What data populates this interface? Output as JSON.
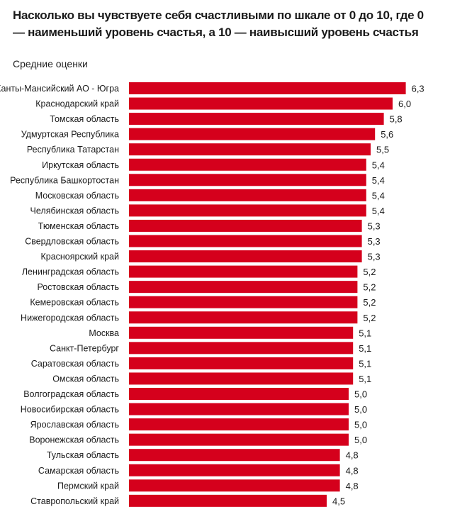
{
  "chart_data": {
    "type": "bar",
    "orientation": "horizontal",
    "title": "Насколько вы чувствуете себя счастливыми по шкале от 0 до 10, где 0 — наименьший уровень счастья, а 10 — наивысший уровень счастья",
    "subtitle": "Средние оценки",
    "xlabel": "",
    "ylabel": "",
    "xlim": [
      0,
      6.3
    ],
    "grid": false,
    "bar_color": "#d5001c",
    "categories": [
      "Ханты-Мансийский АО - Югра",
      "Краснодарский край",
      "Томская область",
      "Удмуртская Республика",
      "Республика Татарстан",
      "Иркутская область",
      "Республика Башкортостан",
      "Московская область",
      "Челябинская область",
      "Тюменская область",
      "Свердловская область",
      "Красноярский край",
      "Ленинградская область",
      "Ростовская область",
      "Кемеровская область",
      "Нижегородская область",
      "Москва",
      "Санкт-Петербург",
      "Саратовская область",
      "Омская область",
      "Волгоградская область",
      "Новосибирская область",
      "Ярославская область",
      "Воронежская область",
      "Тульская область",
      "Самарская область",
      "Пермский край",
      "Ставропольский край"
    ],
    "values": [
      6.3,
      6.0,
      5.8,
      5.6,
      5.5,
      5.4,
      5.4,
      5.4,
      5.4,
      5.3,
      5.3,
      5.3,
      5.2,
      5.2,
      5.2,
      5.2,
      5.1,
      5.1,
      5.1,
      5.1,
      5.0,
      5.0,
      5.0,
      5.0,
      4.8,
      4.8,
      4.8,
      4.5
    ],
    "value_labels": [
      "6,3",
      "6,0",
      "5,8",
      "5,6",
      "5,5",
      "5,4",
      "5,4",
      "5,4",
      "5,4",
      "5,3",
      "5,3",
      "5,3",
      "5,2",
      "5,2",
      "5,2",
      "5,2",
      "5,1",
      "5,1",
      "5,1",
      "5,1",
      "5,0",
      "5,0",
      "5,0",
      "5,0",
      "4,8",
      "4,8",
      "4,8",
      "4,5"
    ]
  }
}
